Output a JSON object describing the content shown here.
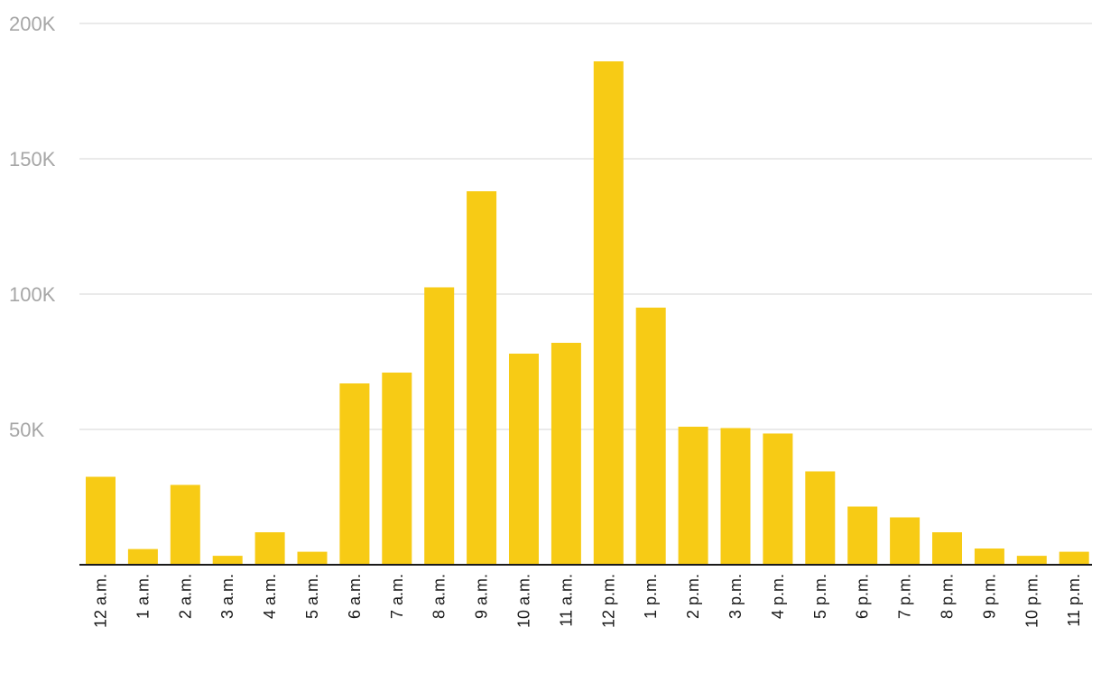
{
  "chart_data": {
    "type": "bar",
    "title": "",
    "xlabel": "",
    "ylabel": "",
    "ylim": [
      0,
      200000
    ],
    "yticks": [
      50000,
      100000,
      150000,
      200000
    ],
    "ytick_labels": [
      "50K",
      "100K",
      "150K",
      "200K"
    ],
    "grid": true,
    "bar_color": "#f7cb15",
    "categories": [
      "12 a.m.",
      "1 a.m.",
      "2 a.m.",
      "3 a.m.",
      "4 a.m.",
      "5 a.m.",
      "6 a.m.",
      "7 a.m.",
      "8 a.m.",
      "9 a.m.",
      "10 a.m.",
      "11 a.m.",
      "12 p.m.",
      "1 p.m.",
      "2 p.m.",
      "3 p.m.",
      "4 p.m.",
      "5 p.m.",
      "6 p.m.",
      "7 p.m.",
      "8 p.m.",
      "9 p.m.",
      "10 p.m.",
      "11 p.m."
    ],
    "values": [
      32500,
      5800,
      29500,
      3300,
      12000,
      4800,
      67000,
      71000,
      102500,
      138000,
      78000,
      82000,
      186000,
      95000,
      51000,
      50500,
      48500,
      34500,
      21500,
      17500,
      12000,
      6000,
      3300,
      4800
    ]
  }
}
